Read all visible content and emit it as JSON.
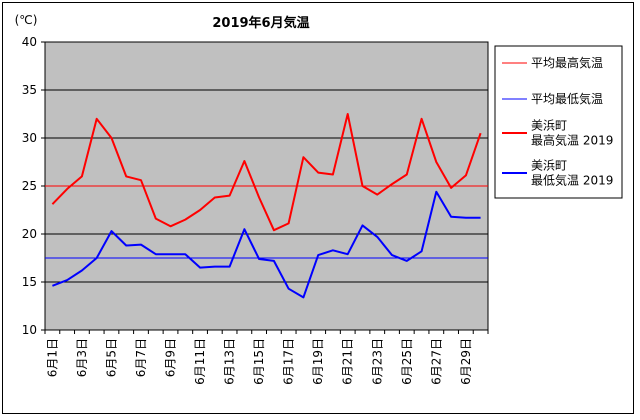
{
  "chart_data": {
    "type": "line",
    "title": "2019年6月気温",
    "ylabel": "(℃)",
    "xlabel": "",
    "ylim": [
      10,
      40
    ],
    "yticks": [
      10,
      15,
      20,
      25,
      30,
      35,
      40
    ],
    "grid": true,
    "legend_position": "right",
    "plot_background": "#c0c0c0",
    "x_tick_labels": [
      "6月1日",
      "6月3日",
      "6月5日",
      "6月7日",
      "6月9日",
      "6月11日",
      "6月13日",
      "6月15日",
      "6月17日",
      "6月19日",
      "6月21日",
      "6月23日",
      "6月25日",
      "6月27日",
      "6月29日"
    ],
    "days": 30,
    "references": [
      {
        "name": "平均最高気温",
        "value": 25.0,
        "color": "#ff0000"
      },
      {
        "name": "平均最低気温",
        "value": 17.5,
        "color": "#0000ff"
      }
    ],
    "series": [
      {
        "name_lines": [
          "美浜町",
          "最高気温 2019"
        ],
        "color": "#ff0000",
        "values": [
          23.1,
          24.7,
          26.0,
          32.0,
          30.0,
          26.0,
          25.6,
          21.6,
          20.8,
          21.5,
          22.5,
          23.8,
          24.0,
          27.6,
          23.8,
          20.4,
          21.1,
          28.0,
          26.4,
          26.2,
          32.5,
          25.0,
          24.1,
          25.2,
          26.2,
          32.0,
          27.5,
          24.8,
          26.1,
          30.5
        ]
      },
      {
        "name_lines": [
          "美浜町",
          "最低気温 2019"
        ],
        "color": "#0000ff",
        "values": [
          14.6,
          15.2,
          16.2,
          17.5,
          20.3,
          18.8,
          18.9,
          17.9,
          17.9,
          17.9,
          16.5,
          16.6,
          16.6,
          20.5,
          17.4,
          17.2,
          14.3,
          13.4,
          17.8,
          18.3,
          17.9,
          20.9,
          19.7,
          17.8,
          17.2,
          18.2,
          24.4,
          21.8,
          21.7,
          21.7
        ]
      }
    ]
  }
}
